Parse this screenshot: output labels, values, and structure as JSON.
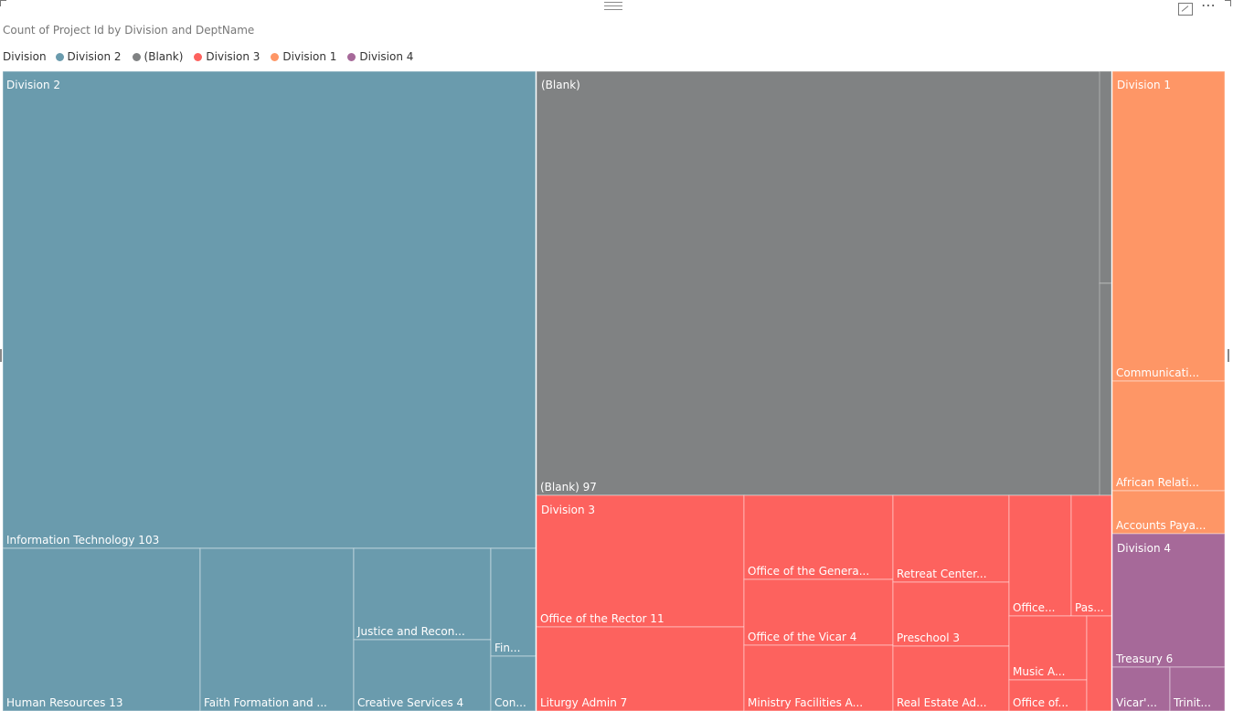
{
  "chart_data": {
    "type": "treemap",
    "title": "Count of Project Id by Division and DeptName",
    "legend": {
      "title": "Division",
      "position": "top-left",
      "items": [
        {
          "name": "Division 2",
          "color": "#6a9bad"
        },
        {
          "name": "(Blank)",
          "color": "#808283"
        },
        {
          "name": "Division 3",
          "color": "#fd625e"
        },
        {
          "name": "Division 1",
          "color": "#fe9666"
        },
        {
          "name": "Division 4",
          "color": "#a66999"
        }
      ]
    },
    "groups": [
      {
        "name": "Division 2",
        "color": "#6a9bad",
        "items": [
          {
            "label": "Information Technology 103",
            "value": 103
          },
          {
            "label": "Human Resources 13",
            "value": 13
          },
          {
            "label": "Faith Formation and ...",
            "value": null
          },
          {
            "label": "Justice and Recon...",
            "value": null
          },
          {
            "label": "Creative Services 4",
            "value": 4
          },
          {
            "label": "Fin...",
            "value": null
          },
          {
            "label": "Con...",
            "value": null
          }
        ]
      },
      {
        "name": "(Blank)",
        "color": "#808283",
        "items": [
          {
            "label": "(Blank) 97",
            "value": 97
          }
        ]
      },
      {
        "name": "Division 1",
        "color": "#fe9666",
        "items": [
          {
            "label": "Communicati...",
            "value": null
          },
          {
            "label": "African Relati...",
            "value": null
          },
          {
            "label": "Accounts Paya...",
            "value": null
          }
        ]
      },
      {
        "name": "Division 3",
        "color": "#fd625e",
        "items": [
          {
            "label": "Office of the Rector 11",
            "value": 11
          },
          {
            "label": "Liturgy Admin 7",
            "value": 7
          },
          {
            "label": "Office of the Genera...",
            "value": null
          },
          {
            "label": "Office of the Vicar 4",
            "value": 4
          },
          {
            "label": "Ministry Facilities A...",
            "value": null
          },
          {
            "label": "Retreat Center...",
            "value": null
          },
          {
            "label": "Preschool 3",
            "value": 3
          },
          {
            "label": "Real Estate Ad...",
            "value": null
          },
          {
            "label": "Office...",
            "value": null
          },
          {
            "label": "Pas...",
            "value": null
          },
          {
            "label": "Music A...",
            "value": null
          },
          {
            "label": "Office of...",
            "value": null
          }
        ]
      },
      {
        "name": "Division 4",
        "color": "#a66999",
        "items": [
          {
            "label": "Treasury 6",
            "value": 6
          },
          {
            "label": "Vicar'...",
            "value": null
          },
          {
            "label": "Trinit...",
            "value": null
          }
        ]
      }
    ]
  }
}
